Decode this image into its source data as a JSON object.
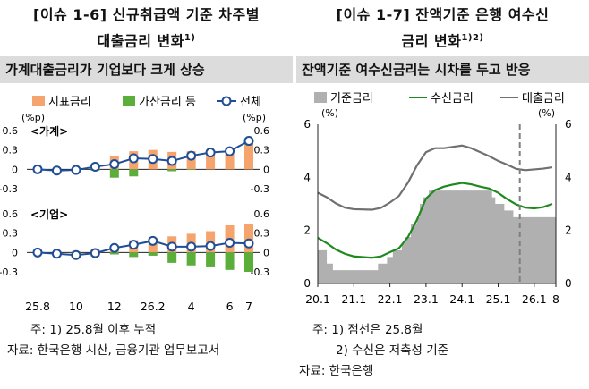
{
  "left": {
    "title_line1": "[이슈 1-6] 신규취급액 기준 차주별",
    "title_line2": "대출금리 변화",
    "title_sup": "1)",
    "subtitle": "가계대출금리가 기업보다 크게 상승",
    "notes": [
      "주: 1) 25.8월 이후 누적",
      "자료: 한국은행 시산, 금융기관 업무보고서"
    ]
  },
  "right": {
    "title_line1": "[이슈 1-7] 잔액기준 은행 여수신",
    "title_line2": "금리 변화",
    "title_sup": "1)2)",
    "subtitle": "잔액기준 여수신금리는 시차를 두고 반응",
    "notes": [
      "주: 1) 점선은 25.8월",
      "2) 수신은 저축성 기준",
      "자료: 한국은행"
    ]
  },
  "chart_data": [
    {
      "type": "bar",
      "unit_left": "(%p)",
      "unit_right": "(%p)",
      "legend": [
        "지표금리",
        "가산금리 등",
        "전체"
      ],
      "colors": {
        "index": "#f4a46c",
        "spread": "#5cae3a",
        "total": "#1f4e96"
      },
      "x_tick_labels": [
        "25.8",
        "10",
        "12",
        "26.2",
        "4",
        "6",
        "7"
      ],
      "x_tick_positions": [
        0,
        2,
        4,
        6,
        8,
        10,
        11
      ],
      "panels": [
        {
          "label": "<가계>",
          "ylim": [
            -0.3,
            0.6
          ],
          "yticks": [
            "0.6",
            "0.3",
            "0",
            "-0.3"
          ],
          "index_rate": [
            0,
            0,
            0,
            0.06,
            0.2,
            0.28,
            0.3,
            0.27,
            0.28,
            0.3,
            0.33,
            0.38
          ],
          "spread": [
            0,
            0,
            0,
            -0.02,
            -0.13,
            -0.11,
            0,
            -0.03,
            -0.01,
            0,
            0,
            0.06
          ],
          "total": [
            0,
            -0.02,
            -0.01,
            0.04,
            0.08,
            0.17,
            0.16,
            0.13,
            0.21,
            0.26,
            0.28,
            0.44
          ]
        },
        {
          "label": "<기업>",
          "ylim": [
            -0.3,
            0.6
          ],
          "yticks": [
            "0.6",
            "0.3",
            "0",
            "-0.3"
          ],
          "index_rate": [
            0,
            0.02,
            0.02,
            0.05,
            0.1,
            0.19,
            0.23,
            0.25,
            0.29,
            0.33,
            0.42,
            0.44
          ],
          "spread": [
            0,
            -0.02,
            -0.06,
            -0.06,
            -0.03,
            -0.07,
            -0.05,
            -0.16,
            -0.2,
            -0.23,
            -0.27,
            -0.3
          ],
          "total": [
            0,
            -0.02,
            -0.04,
            -0.01,
            0.07,
            0.12,
            0.18,
            0.09,
            0.09,
            0.1,
            0.15,
            0.14
          ]
        }
      ]
    },
    {
      "type": "line",
      "unit_left": "(%)",
      "unit_right": "(%)",
      "legend": [
        "기준금리",
        "수신금리",
        "대출금리"
      ],
      "colors": {
        "base": "#b0b0b0",
        "deposit": "#1e8a1e",
        "loan": "#707070",
        "marker": "#808080"
      },
      "ylim": [
        0,
        6
      ],
      "yticks": [
        "0",
        "2",
        "4",
        "6"
      ],
      "x_tick_labels": [
        "20.1",
        "21.1",
        "22.1",
        "23.1",
        "24.1",
        "25.1",
        "26.1",
        "8"
      ],
      "x_tick_values": [
        2020.0,
        2021.0,
        2022.0,
        2023.0,
        2024.0,
        2025.0,
        2026.0,
        2026.6
      ],
      "xlim": [
        2020.0,
        2026.6
      ],
      "marker_x": 2025.6,
      "base_rate_steps": [
        [
          2020.0,
          1.25
        ],
        [
          2020.25,
          0.75
        ],
        [
          2020.42,
          0.5
        ],
        [
          2021.67,
          0.75
        ],
        [
          2021.92,
          1.0
        ],
        [
          2022.08,
          1.25
        ],
        [
          2022.33,
          1.5
        ],
        [
          2022.42,
          1.75
        ],
        [
          2022.58,
          2.25
        ],
        [
          2022.75,
          2.5
        ],
        [
          2022.83,
          3.0
        ],
        [
          2022.92,
          3.25
        ],
        [
          2023.08,
          3.5
        ],
        [
          2024.83,
          3.25
        ],
        [
          2024.92,
          3.0
        ],
        [
          2025.17,
          2.75
        ],
        [
          2025.42,
          2.5
        ],
        [
          2026.6,
          2.5
        ]
      ],
      "deposit_rate": [
        [
          2020.0,
          1.72
        ],
        [
          2020.25,
          1.52
        ],
        [
          2020.5,
          1.28
        ],
        [
          2020.75,
          1.12
        ],
        [
          2021.0,
          1.02
        ],
        [
          2021.5,
          0.97
        ],
        [
          2021.75,
          1.02
        ],
        [
          2022.0,
          1.18
        ],
        [
          2022.25,
          1.33
        ],
        [
          2022.5,
          1.75
        ],
        [
          2022.75,
          2.4
        ],
        [
          2023.0,
          3.2
        ],
        [
          2023.25,
          3.52
        ],
        [
          2023.5,
          3.65
        ],
        [
          2023.75,
          3.73
        ],
        [
          2024.0,
          3.79
        ],
        [
          2024.25,
          3.74
        ],
        [
          2024.5,
          3.65
        ],
        [
          2024.75,
          3.58
        ],
        [
          2025.0,
          3.42
        ],
        [
          2025.25,
          3.18
        ],
        [
          2025.5,
          2.98
        ],
        [
          2025.75,
          2.86
        ],
        [
          2026.0,
          2.83
        ],
        [
          2026.25,
          2.88
        ],
        [
          2026.5,
          3.0
        ]
      ],
      "loan_rate": [
        [
          2020.0,
          3.42
        ],
        [
          2020.25,
          3.25
        ],
        [
          2020.5,
          3.02
        ],
        [
          2020.75,
          2.86
        ],
        [
          2021.0,
          2.8
        ],
        [
          2021.5,
          2.78
        ],
        [
          2021.75,
          2.85
        ],
        [
          2022.0,
          3.05
        ],
        [
          2022.25,
          3.3
        ],
        [
          2022.5,
          3.8
        ],
        [
          2022.75,
          4.45
        ],
        [
          2023.0,
          4.95
        ],
        [
          2023.25,
          5.1
        ],
        [
          2023.5,
          5.1
        ],
        [
          2023.75,
          5.15
        ],
        [
          2024.0,
          5.2
        ],
        [
          2024.25,
          5.1
        ],
        [
          2024.5,
          4.95
        ],
        [
          2024.75,
          4.8
        ],
        [
          2025.0,
          4.62
        ],
        [
          2025.25,
          4.48
        ],
        [
          2025.5,
          4.32
        ],
        [
          2025.75,
          4.27
        ],
        [
          2026.0,
          4.3
        ],
        [
          2026.25,
          4.33
        ],
        [
          2026.5,
          4.38
        ]
      ]
    }
  ]
}
